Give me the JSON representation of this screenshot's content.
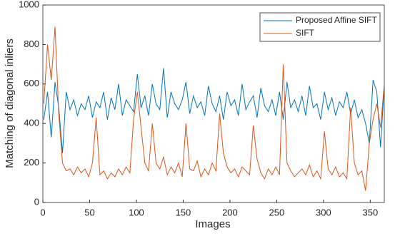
{
  "chart_data": {
    "type": "line",
    "xlabel": "Images",
    "ylabel": "Matching of diagonal inliers",
    "xlim": [
      0,
      365
    ],
    "xticks": [
      0,
      50,
      100,
      150,
      200,
      250,
      300,
      350
    ],
    "ylim": [
      0,
      1000
    ],
    "yticks": [
      0,
      200,
      400,
      600,
      800,
      1000
    ],
    "legend": "upper right",
    "x": [
      1,
      5,
      9,
      13,
      17,
      21,
      25,
      29,
      33,
      37,
      41,
      45,
      49,
      53,
      57,
      61,
      65,
      69,
      73,
      77,
      81,
      85,
      89,
      93,
      97,
      101,
      105,
      109,
      113,
      117,
      121,
      125,
      129,
      133,
      137,
      141,
      145,
      149,
      153,
      157,
      161,
      165,
      169,
      173,
      177,
      181,
      185,
      189,
      193,
      197,
      201,
      205,
      209,
      213,
      217,
      221,
      225,
      229,
      233,
      237,
      241,
      245,
      249,
      253,
      257,
      261,
      265,
      269,
      273,
      277,
      281,
      285,
      289,
      293,
      297,
      301,
      305,
      309,
      313,
      317,
      321,
      325,
      329,
      333,
      337,
      341,
      345,
      349,
      353,
      357,
      361,
      365
    ],
    "series": [
      {
        "name": "Proposed Affine SIFT",
        "color": "#0072bd",
        "values": [
          420,
          560,
          330,
          610,
          480,
          250,
          560,
          470,
          520,
          440,
          500,
          470,
          540,
          430,
          510,
          480,
          560,
          420,
          530,
          470,
          600,
          440,
          520,
          490,
          460,
          650,
          480,
          540,
          440,
          600,
          500,
          470,
          680,
          430,
          560,
          500,
          470,
          520,
          610,
          450,
          540,
          480,
          510,
          440,
          590,
          500,
          460,
          540,
          420,
          560,
          490,
          520,
          440,
          600,
          470,
          510,
          540,
          430,
          580,
          490,
          460,
          520,
          440,
          560,
          420,
          610,
          480,
          520,
          460,
          540,
          440,
          590,
          480,
          500,
          420,
          560,
          470,
          530,
          440,
          510,
          480,
          560,
          450,
          520,
          430,
          470,
          400,
          300,
          620,
          560,
          280,
          600
        ]
      },
      {
        "name": "SIFT",
        "color": "#d95319",
        "values": [
          500,
          800,
          620,
          890,
          450,
          200,
          160,
          170,
          140,
          180,
          150,
          170,
          130,
          200,
          430,
          140,
          160,
          120,
          150,
          130,
          170,
          140,
          180,
          150,
          420,
          560,
          380,
          200,
          160,
          400,
          200,
          170,
          230,
          140,
          180,
          150,
          200,
          130,
          400,
          170,
          160,
          210,
          130,
          170,
          140,
          200,
          160,
          450,
          250,
          180,
          150,
          170,
          130,
          180,
          160,
          140,
          390,
          220,
          150,
          120,
          170,
          140,
          180,
          140,
          700,
          200,
          160,
          130,
          150,
          170,
          140,
          190,
          130,
          160,
          120,
          360,
          170,
          140,
          180,
          130,
          150,
          120,
          480,
          200,
          140,
          160,
          60,
          300,
          420,
          500,
          380,
          600
        ]
      }
    ]
  }
}
